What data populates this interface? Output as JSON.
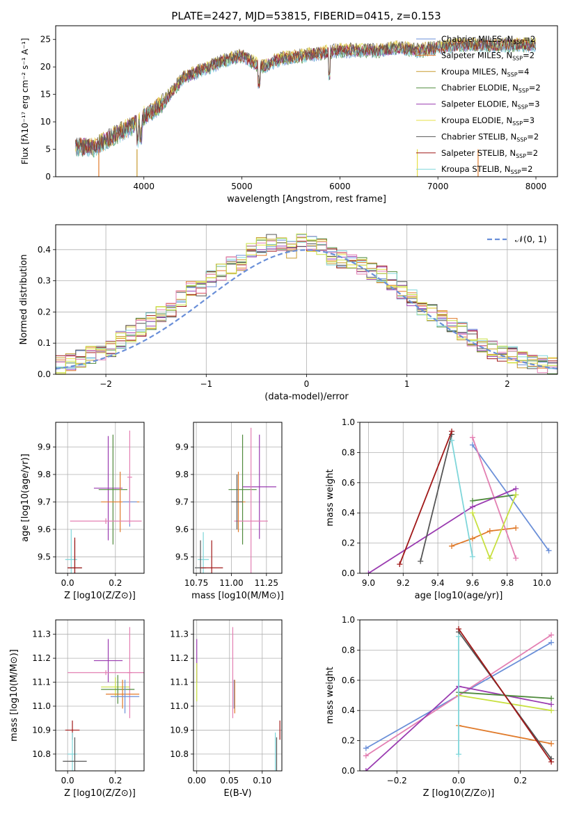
{
  "title": "PLATE=2427, MJD=53815, FIBERID=0415, z=0.153",
  "colors": [
    "#6a8fd8",
    "#e07a2a",
    "#c79a2e",
    "#4f8a3c",
    "#9a3bb0",
    "#e6e046",
    "#555555",
    "#a01818",
    "#7fd6da",
    "#e37fb2",
    "#c8e040"
  ],
  "spectrum": {
    "xlabel": "wavelength [Angstrom, rest frame]",
    "ylabel": "Flux [fλ10⁻¹⁷ erg cm⁻² s⁻¹ A⁻¹]",
    "xticks": [
      "4000",
      "5000",
      "6000",
      "7000",
      "8000"
    ],
    "yticks": [
      "0",
      "5",
      "10",
      "15",
      "20",
      "25"
    ],
    "xlim": [
      3100,
      8220
    ],
    "ylim": [
      0,
      27.5
    ],
    "legend": [
      "Chabrier MILES, N_SSP=2",
      "Salpeter MILES, N_SSP=2",
      "Kroupa MILES, N_SSP=4",
      "Chabrier ELODIE, N_SSP=2",
      "Salpeter ELODIE, N_SSP=3",
      "Kroupa ELODIE, N_SSP=3",
      "Chabrier STELIB, N_SSP=2",
      "Salpeter STELIB, N_SSP=2",
      "Kroupa STELIB, N_SSP=2"
    ]
  },
  "chart_data": [
    {
      "type": "line",
      "title": "PLATE=2427, MJD=53815, FIBERID=0415, z=0.153",
      "xlabel": "wavelength [Angstrom, rest frame]",
      "ylabel": "Flux [fλ10⁻¹⁷ erg cm⁻² s⁻¹ A⁻¹]",
      "xlim": [
        3100,
        8220
      ],
      "ylim": [
        0,
        27.5
      ],
      "x": [
        3300,
        3500,
        3700,
        3900,
        4000,
        4200,
        4400,
        4600,
        4800,
        5000,
        5200,
        5400,
        5600,
        5800,
        6000,
        6200,
        6400,
        6600,
        6800,
        7000,
        7200,
        7400
      ],
      "values": [
        5.5,
        5.4,
        7.5,
        9.5,
        11,
        13.5,
        18,
        19.5,
        21,
        22,
        20,
        21.5,
        22,
        22.5,
        23,
        23,
        23,
        23.5,
        23,
        23.5,
        24,
        24
      ]
    },
    {
      "type": "histogram",
      "xlabel": "(data-model)/error",
      "ylabel": "Normed distribution",
      "xlim": [
        -2.5,
        2.5
      ],
      "ylim": [
        0,
        0.48
      ],
      "xticks": [
        "−2",
        "−1",
        "0",
        "1",
        "2"
      ],
      "yticks": [
        "0.0",
        "0.1",
        "0.2",
        "0.3",
        "0.4"
      ],
      "legend": "N(0,1)",
      "bin_centers": [
        -2.45,
        -2.35,
        -2.25,
        -2.15,
        -2.05,
        -1.95,
        -1.85,
        -1.75,
        -1.65,
        -1.55,
        -1.45,
        -1.35,
        -1.25,
        -1.15,
        -1.05,
        -0.95,
        -0.85,
        -0.75,
        -0.65,
        -0.55,
        -0.45,
        -0.35,
        -0.25,
        -0.15,
        -0.05,
        0.05,
        0.15,
        0.25,
        0.35,
        0.45,
        0.55,
        0.65,
        0.75,
        0.85,
        0.95,
        1.05,
        1.15,
        1.25,
        1.35,
        1.45,
        1.55,
        1.65,
        1.75,
        1.85,
        1.95,
        2.05,
        2.15,
        2.25,
        2.35,
        2.45
      ],
      "values": [
        0.03,
        0.04,
        0.05,
        0.06,
        0.065,
        0.08,
        0.11,
        0.13,
        0.15,
        0.17,
        0.19,
        0.2,
        0.24,
        0.27,
        0.28,
        0.31,
        0.33,
        0.35,
        0.36,
        0.4,
        0.41,
        0.42,
        0.41,
        0.4,
        0.43,
        0.42,
        0.41,
        0.38,
        0.37,
        0.36,
        0.35,
        0.33,
        0.32,
        0.3,
        0.27,
        0.25,
        0.22,
        0.2,
        0.18,
        0.16,
        0.14,
        0.12,
        0.1,
        0.08,
        0.07,
        0.06,
        0.05,
        0.045,
        0.035,
        0.03
      ]
    },
    {
      "type": "scatter",
      "name": "age vs Z",
      "xlabel": "Z [log10(Z/Z⊙)]",
      "ylabel": "age [log10(age/yr)]",
      "xlim": [
        -0.05,
        0.32
      ],
      "ylim": [
        9.44,
        9.99
      ],
      "xticks": [
        "0.0",
        "0.2"
      ],
      "yticks": [
        "9.5",
        "9.6",
        "9.7",
        "9.8",
        "9.9"
      ],
      "points": [
        {
          "x": 0.17,
          "y": 9.75,
          "xerr": 0.06,
          "yerr": 0.19,
          "c": 4
        },
        {
          "x": 0.19,
          "y": 9.745,
          "xerr": 0.06,
          "yerr": 0.2,
          "c": 3
        },
        {
          "x": 0.22,
          "y": 9.7,
          "xerr": 0.08,
          "yerr": 0.11,
          "c": 1
        },
        {
          "x": 0.26,
          "y": 9.7,
          "xerr": 0.03,
          "yerr": 0.09,
          "c": 0
        },
        {
          "x": 0.26,
          "y": 9.79,
          "xerr": 0.01,
          "yerr": 0.17,
          "c": 9
        },
        {
          "x": 0.16,
          "y": 9.63,
          "xerr": 0.15,
          "yerr": 0.01,
          "c": 9
        },
        {
          "x": 0.015,
          "y": 9.49,
          "xerr": 0.025,
          "yerr": 0.11,
          "c": 8
        },
        {
          "x": 0.03,
          "y": 9.46,
          "xerr": 0.03,
          "yerr": 0.1,
          "c": 6
        },
        {
          "x": 0.03,
          "y": 9.46,
          "xerr": 0.03,
          "yerr": 0.11,
          "c": 7
        }
      ]
    },
    {
      "type": "scatter",
      "name": "age vs mass",
      "xlabel": "mass [log10(M/M⊙)]",
      "xlim": [
        10.73,
        11.36
      ],
      "ylim": [
        9.44,
        9.99
      ],
      "xticks": [
        "10.75",
        "11.00",
        "11.25"
      ],
      "yticks": [
        "9.5",
        "9.6",
        "9.7",
        "9.8",
        "9.9"
      ],
      "points": [
        {
          "x": 11.08,
          "y": 9.745,
          "xerr": 0.1,
          "yerr": 0.2,
          "c": 3
        },
        {
          "x": 11.2,
          "y": 9.755,
          "xerr": 0.12,
          "yerr": 0.19,
          "c": 4
        },
        {
          "x": 11.14,
          "y": 9.63,
          "xerr": 0.12,
          "yerr": 0.34,
          "c": 9
        },
        {
          "x": 11.05,
          "y": 9.7,
          "xerr": 0.05,
          "yerr": 0.11,
          "c": 1
        },
        {
          "x": 11.04,
          "y": 9.7,
          "xerr": 0.04,
          "yerr": 0.1,
          "c": 6
        },
        {
          "x": 10.8,
          "y": 9.49,
          "xerr": 0.04,
          "yerr": 0.1,
          "c": 8
        },
        {
          "x": 10.78,
          "y": 9.46,
          "xerr": 0.04,
          "yerr": 0.1,
          "c": 6
        },
        {
          "x": 10.86,
          "y": 9.46,
          "xerr": 0.08,
          "yerr": 0.1,
          "c": 7
        }
      ]
    },
    {
      "type": "line",
      "name": "mass weight vs age",
      "xlabel": "age [log10(age/yr)]",
      "ylabel": "mass weight",
      "xlim": [
        8.95,
        10.09
      ],
      "ylim": [
        0,
        1
      ],
      "xticks": [
        "9.0",
        "9.2",
        "9.4",
        "9.6",
        "9.8",
        "10.0"
      ],
      "yticks": [
        "0.0",
        "0.2",
        "0.4",
        "0.6",
        "0.8",
        "1.0"
      ],
      "series": [
        {
          "x": [
            9.6,
            10.04
          ],
          "y": [
            0.85,
            0.15
          ],
          "c": 0
        },
        {
          "x": [
            9.48,
            9.6,
            9.7,
            9.85
          ],
          "y": [
            0.18,
            0.23,
            0.28,
            0.3
          ],
          "c": 1
        },
        {
          "x": [
            9.6,
            9.85
          ],
          "y": [
            0.9,
            0.1
          ],
          "c": 9
        },
        {
          "x": [
            9.6,
            9.85
          ],
          "y": [
            0.48,
            0.52
          ],
          "c": 3
        },
        {
          "x": [
            9.0,
            9.6,
            9.85
          ],
          "y": [
            0.0,
            0.44,
            0.56
          ],
          "c": 4
        },
        {
          "x": [
            9.6,
            9.7,
            9.85
          ],
          "y": [
            0.4,
            0.1,
            0.52
          ],
          "c": 10
        },
        {
          "x": [
            9.3,
            9.48
          ],
          "y": [
            0.08,
            0.92
          ],
          "c": 6
        },
        {
          "x": [
            9.18,
            9.48
          ],
          "y": [
            0.06,
            0.94
          ],
          "c": 7
        },
        {
          "x": [
            9.48,
            9.6
          ],
          "y": [
            0.88,
            0.11
          ],
          "c": 8
        }
      ]
    },
    {
      "type": "scatter",
      "name": "mass vs Z",
      "xlabel": "Z [log10(Z/Z⊙)]",
      "ylabel": "mass [log10(M/M⊙)]",
      "xlim": [
        -0.05,
        0.32
      ],
      "ylim": [
        10.73,
        11.36
      ],
      "xticks": [
        "0.0",
        "0.2"
      ],
      "yticks": [
        "10.8",
        "10.9",
        "11.0",
        "11.1",
        "11.2",
        "11.3"
      ],
      "points": [
        {
          "x": 0.17,
          "y": 11.19,
          "xerr": 0.06,
          "yerr": 0.09,
          "c": 4
        },
        {
          "x": 0.16,
          "y": 11.14,
          "xerr": 0.16,
          "yerr": 0.01,
          "c": 9
        },
        {
          "x": 0.26,
          "y": 11.14,
          "xerr": 0.01,
          "yerr": 0.19,
          "c": 9
        },
        {
          "x": 0.2,
          "y": 11.08,
          "xerr": 0.06,
          "yerr": 0.04,
          "c": 10
        },
        {
          "x": 0.21,
          "y": 11.07,
          "xerr": 0.07,
          "yerr": 0.06,
          "c": 3
        },
        {
          "x": 0.23,
          "y": 11.05,
          "xerr": 0.07,
          "yerr": 0.06,
          "c": 1
        },
        {
          "x": 0.24,
          "y": 11.04,
          "xerr": 0.06,
          "yerr": 0.07,
          "c": 0
        },
        {
          "x": 0.02,
          "y": 10.9,
          "xerr": 0.03,
          "yerr": 0.04,
          "c": 7
        },
        {
          "x": 0.02,
          "y": 10.8,
          "xerr": 0.02,
          "yerr": 0.09,
          "c": 8
        },
        {
          "x": 0.03,
          "y": 10.77,
          "xerr": 0.05,
          "yerr": 0.1,
          "c": 6
        }
      ]
    },
    {
      "type": "scatter",
      "name": "mass vs E(B-V)",
      "xlabel": "E(B-V)",
      "xlim": [
        -0.005,
        0.13
      ],
      "ylim": [
        10.73,
        11.36
      ],
      "xticks": [
        "0.00",
        "0.05",
        "0.10"
      ],
      "yticks": [
        "10.8",
        "10.9",
        "11.0",
        "11.1",
        "11.2",
        "11.3"
      ],
      "points": [
        {
          "x": 0.0,
          "y": 11.19,
          "xerr": 0,
          "yerr": 0.09,
          "c": 4
        },
        {
          "x": 0.0,
          "y": 11.1,
          "xerr": 0,
          "yerr": 0.08,
          "c": 10
        },
        {
          "x": 0.055,
          "y": 11.14,
          "xerr": 0,
          "yerr": 0.19,
          "c": 9
        },
        {
          "x": 0.057,
          "y": 11.05,
          "xerr": 0,
          "yerr": 0.06,
          "c": 0
        },
        {
          "x": 0.058,
          "y": 11.04,
          "xerr": 0,
          "yerr": 0.07,
          "c": 1
        },
        {
          "x": 0.12,
          "y": 10.8,
          "xerr": 0,
          "yerr": 0.09,
          "c": 8
        },
        {
          "x": 0.122,
          "y": 10.77,
          "xerr": 0,
          "yerr": 0.1,
          "c": 6
        },
        {
          "x": 0.127,
          "y": 10.9,
          "xerr": 0,
          "yerr": 0.04,
          "c": 7
        }
      ]
    },
    {
      "type": "line",
      "name": "mass weight vs Z",
      "xlabel": "Z [log10(Z/Z⊙)]",
      "ylabel": "mass weight",
      "xlim": [
        -0.32,
        0.32
      ],
      "ylim": [
        0,
        1
      ],
      "xticks": [
        "−0.2",
        "0.0",
        "0.2"
      ],
      "yticks": [
        "0.0",
        "0.2",
        "0.4",
        "0.6",
        "0.8",
        "1.0"
      ],
      "series": [
        {
          "x": [
            -0.3,
            0.3
          ],
          "y": [
            0.15,
            0.85
          ],
          "c": 0
        },
        {
          "x": [
            -0.3,
            0.3
          ],
          "y": [
            0.1,
            0.9
          ],
          "c": 9
        },
        {
          "x": [
            -0.3,
            0.0,
            0.3
          ],
          "y": [
            0.0,
            0.56,
            0.44
          ],
          "c": 4
        },
        {
          "x": [
            0.0,
            0.3
          ],
          "y": [
            0.52,
            0.48
          ],
          "c": 3
        },
        {
          "x": [
            0.0,
            0.3
          ],
          "y": [
            0.5,
            0.4
          ],
          "c": 10
        },
        {
          "x": [
            0.0,
            0.3
          ],
          "y": [
            0.3,
            0.18
          ],
          "c": 1
        },
        {
          "x": [
            0.0,
            0.3
          ],
          "y": [
            0.92,
            0.08
          ],
          "c": 6
        },
        {
          "x": [
            0.0,
            0.3
          ],
          "y": [
            0.94,
            0.06
          ],
          "c": 7
        },
        {
          "x": [
            0.0,
            0.0
          ],
          "y": [
            0.89,
            0.11
          ],
          "c": 8
        }
      ]
    }
  ],
  "hist_legend": "𝒩(0, 1)"
}
